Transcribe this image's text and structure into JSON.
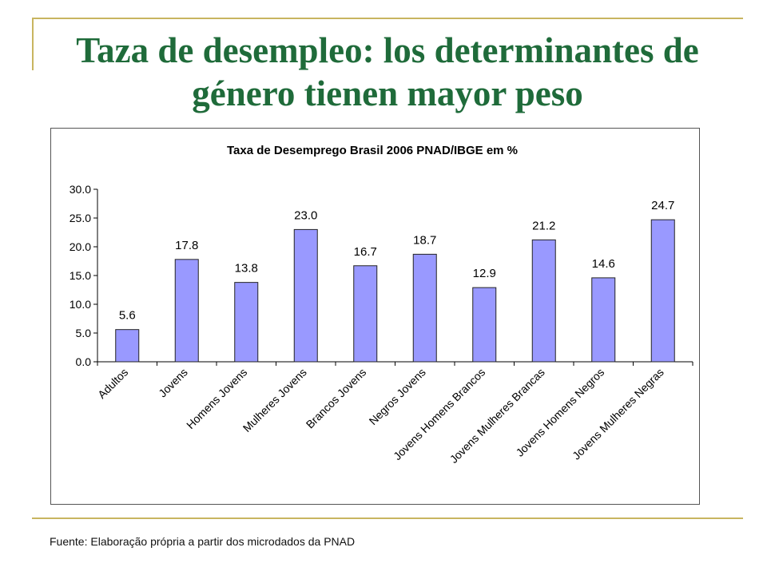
{
  "slide": {
    "title": "Taza de desempleo: los determinantes de género tienen mayor peso",
    "source_note": "Fuente: Elaboração própria a partir dos microdados da PNAD"
  },
  "colors": {
    "title": "#1f6b3a",
    "accent_lines": "#c8b560",
    "bar_fill": "#9999ff",
    "bar_stroke": "#222222"
  },
  "chart_data": {
    "type": "bar",
    "title": "Taxa de Desemprego Brasil 2006 PNAD/IBGE em %",
    "xlabel": "",
    "ylabel": "",
    "ylim": [
      0,
      30
    ],
    "yticks": [
      "0.0",
      "5.0",
      "10.0",
      "15.0",
      "20.0",
      "25.0",
      "30.0"
    ],
    "categories": [
      "Adultos",
      "Jovens",
      "Homens Jovens",
      "Mulheres Jovens",
      "Brancos Jovens",
      "Negros Jovens",
      "Jovens Homens Brancos",
      "Jovens Mulheres Brancas",
      "Jovens Homens Negros",
      "Jovens Mulheres Negras"
    ],
    "values": [
      5.6,
      17.8,
      13.8,
      23.0,
      16.7,
      18.7,
      12.9,
      21.2,
      14.6,
      24.7
    ],
    "value_labels": [
      "5.6",
      "17.8",
      "13.8",
      "23.0",
      "16.7",
      "18.7",
      "12.9",
      "21.2",
      "14.6",
      "24.7"
    ],
    "grid": false,
    "legend": "none"
  }
}
